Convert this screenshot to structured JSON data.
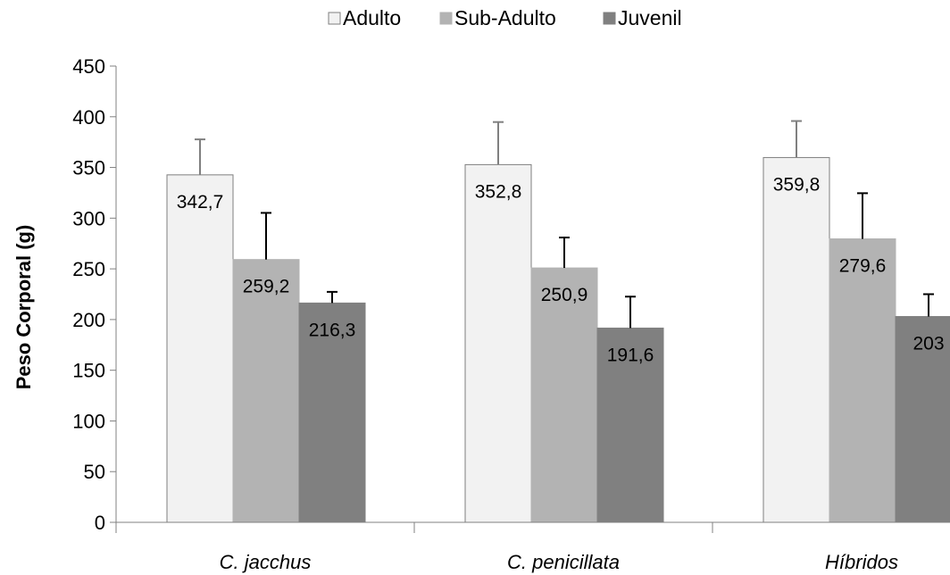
{
  "chart_data": {
    "type": "bar",
    "title": "",
    "xlabel": "",
    "ylabel": "Peso Corporal (g)",
    "categories": [
      "C. jacchus",
      "C. penicillata",
      "Híbridos"
    ],
    "ylim": [
      0,
      450
    ],
    "yticks": [
      0,
      50,
      100,
      150,
      200,
      250,
      300,
      350,
      400,
      450
    ],
    "grid": false,
    "legend_position": "top",
    "series": [
      {
        "name": "Adulto",
        "values": [
          342.7,
          352.8,
          359.8
        ],
        "errors": [
          35,
          42,
          36
        ],
        "labels": [
          "342,7",
          "352,8",
          "359,8"
        ],
        "color": "#f2f2f2",
        "stroke": "#7f7f7f",
        "error_color": "#808080"
      },
      {
        "name": "Sub-Adulto",
        "values": [
          259.2,
          250.9,
          279.6
        ],
        "errors": [
          46,
          30,
          45
        ],
        "labels": [
          "259,2",
          "250,9",
          "279,6"
        ],
        "color": "#b3b3b3",
        "stroke": "#b3b3b3",
        "error_color": "#000000"
      },
      {
        "name": "Juvenil",
        "values": [
          216.3,
          191.6,
          203
        ],
        "errors": [
          11,
          31,
          22
        ],
        "labels": [
          "216,3",
          "191,6",
          "203"
        ],
        "color": "#808080",
        "stroke": "#808080",
        "error_color": "#000000"
      }
    ]
  }
}
